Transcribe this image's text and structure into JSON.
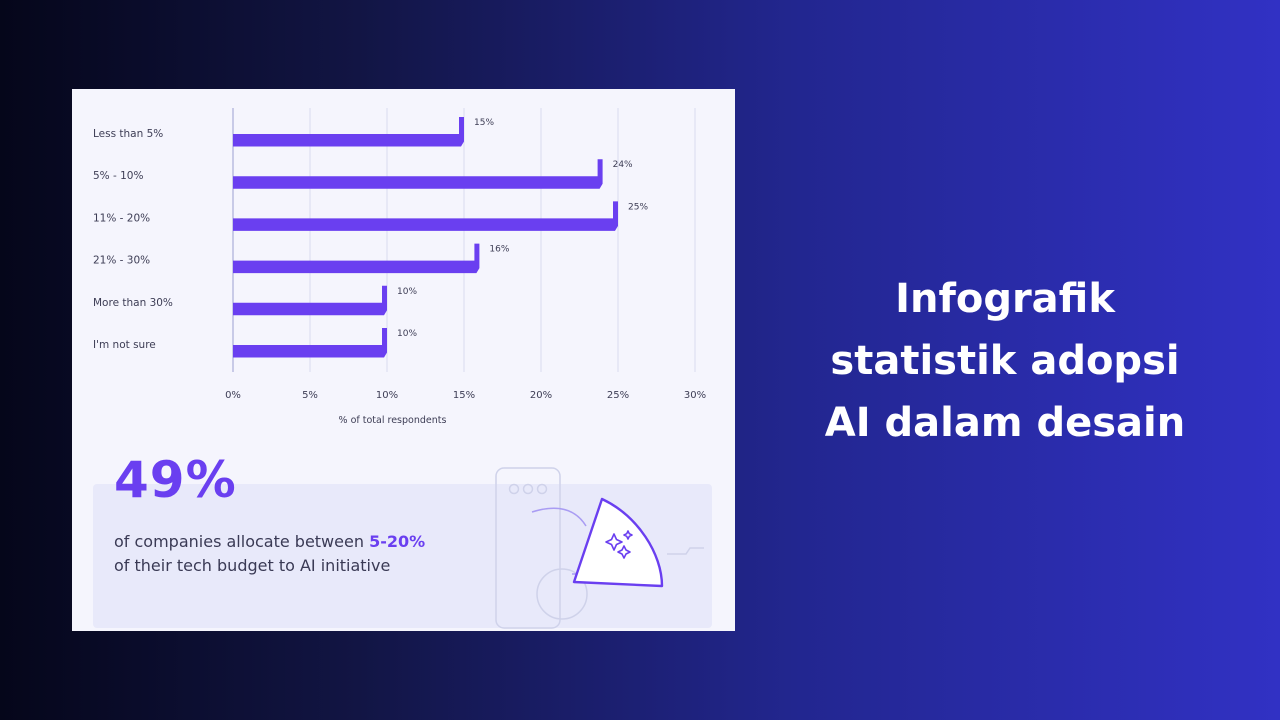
{
  "headline": [
    "Infografik",
    "statistik adopsi",
    "AI dalam desain"
  ],
  "colors": {
    "bar": "#6a3ff0",
    "grid": "#d9dbef",
    "accent": "#6a3ff0"
  },
  "chart_data": {
    "type": "bar",
    "orientation": "horizontal",
    "categories": [
      "Less than 5%",
      "5% - 10%",
      "11% - 20%",
      "21% - 30%",
      "More than 30%",
      "I'm not sure"
    ],
    "values": [
      15,
      24,
      25,
      16,
      10,
      10
    ],
    "value_labels": [
      "15%",
      "24%",
      "25%",
      "16%",
      "10%",
      "10%"
    ],
    "xlabel": "% of total respondents",
    "xlim": [
      0,
      30
    ],
    "xticks": [
      "0%",
      "5%",
      "10%",
      "15%",
      "20%",
      "25%",
      "30%"
    ],
    "grid": true
  },
  "stat": {
    "value": "49%",
    "line1_prefix": "of companies allocate between ",
    "line1_highlight": "5-20%",
    "line2": "of their tech budget to AI initiative"
  },
  "illustration": {
    "icon": "sparkles-icon"
  }
}
